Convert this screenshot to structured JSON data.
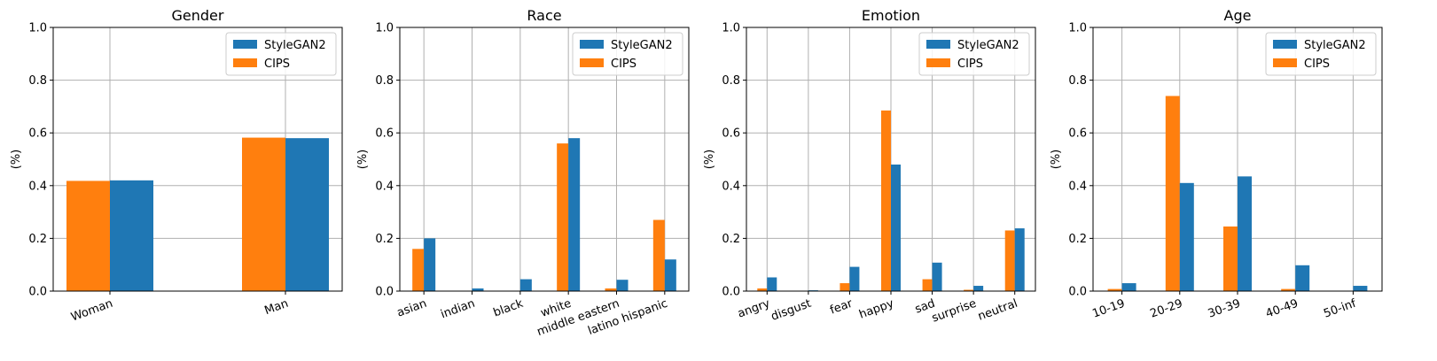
{
  "colors": {
    "stylegan2": "#1f77b4",
    "cips": "#ff7f0e",
    "grid": "#b0b0b0",
    "axis": "#000000"
  },
  "chart_data": [
    {
      "type": "bar",
      "title": "Gender",
      "ylabel": "(%)",
      "ylim": [
        0,
        1.0
      ],
      "yticks": [
        "0.0",
        "0.2",
        "0.4",
        "0.6",
        "0.8",
        "1.0"
      ],
      "categories": [
        "Woman",
        "Man"
      ],
      "legend": {
        "position": "top-right",
        "entries": [
          "StyleGAN2",
          "CIPS"
        ]
      },
      "grid": true,
      "series": [
        {
          "name": "CIPS",
          "values": [
            0.418,
            0.582
          ]
        },
        {
          "name": "StyleGAN2",
          "values": [
            0.42,
            0.58
          ]
        }
      ]
    },
    {
      "type": "bar",
      "title": "Race",
      "ylabel": "(%)",
      "ylim": [
        0,
        1.0
      ],
      "yticks": [
        "0.0",
        "0.2",
        "0.4",
        "0.6",
        "0.8",
        "1.0"
      ],
      "categories": [
        "asian",
        "indian",
        "black",
        "white",
        "middle eastern",
        "latino hispanic"
      ],
      "legend": {
        "position": "top-right",
        "entries": [
          "StyleGAN2",
          "CIPS"
        ]
      },
      "grid": true,
      "series": [
        {
          "name": "CIPS",
          "values": [
            0.16,
            0.0,
            0.0,
            0.56,
            0.01,
            0.27
          ]
        },
        {
          "name": "StyleGAN2",
          "values": [
            0.2,
            0.01,
            0.045,
            0.58,
            0.043,
            0.12
          ]
        }
      ]
    },
    {
      "type": "bar",
      "title": "Emotion",
      "ylabel": "(%)",
      "ylim": [
        0,
        1.0
      ],
      "yticks": [
        "0.0",
        "0.2",
        "0.4",
        "0.6",
        "0.8",
        "1.0"
      ],
      "categories": [
        "angry",
        "disgust",
        "fear",
        "happy",
        "sad",
        "surprise",
        "neutral"
      ],
      "legend": {
        "position": "top-right",
        "entries": [
          "StyleGAN2",
          "CIPS"
        ]
      },
      "grid": true,
      "series": [
        {
          "name": "CIPS",
          "values": [
            0.01,
            0.0,
            0.03,
            0.685,
            0.045,
            0.005,
            0.23
          ]
        },
        {
          "name": "StyleGAN2",
          "values": [
            0.052,
            0.003,
            0.092,
            0.48,
            0.108,
            0.02,
            0.238
          ]
        }
      ]
    },
    {
      "type": "bar",
      "title": "Age",
      "ylabel": "(%)",
      "ylim": [
        0,
        1.0
      ],
      "yticks": [
        "0.0",
        "0.2",
        "0.4",
        "0.6",
        "0.8",
        "1.0"
      ],
      "categories": [
        "10-19",
        "20-29",
        "30-39",
        "40-49",
        "50-inf"
      ],
      "legend": {
        "position": "top-right",
        "entries": [
          "StyleGAN2",
          "CIPS"
        ]
      },
      "grid": true,
      "series": [
        {
          "name": "CIPS",
          "values": [
            0.008,
            0.74,
            0.245,
            0.008,
            0.0
          ]
        },
        {
          "name": "StyleGAN2",
          "values": [
            0.03,
            0.41,
            0.435,
            0.098,
            0.02
          ]
        }
      ]
    }
  ]
}
